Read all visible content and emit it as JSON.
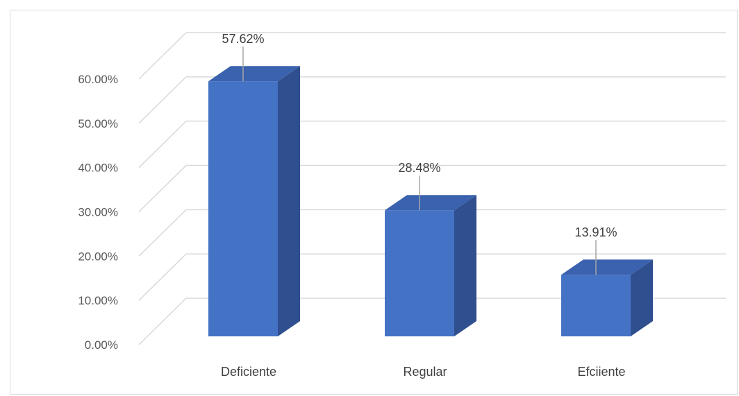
{
  "chart_data": {
    "type": "bar",
    "style": "3d-column",
    "title": "",
    "xlabel": "",
    "ylabel": "",
    "categories": [
      "Deficiente",
      "Regular",
      "Efciiente"
    ],
    "values": [
      57.62,
      28.48,
      13.91
    ],
    "data_labels": [
      "57.62%",
      "28.48%",
      "13.91%"
    ],
    "ylim": [
      0,
      60
    ],
    "y_ticks": [
      0,
      10,
      20,
      30,
      40,
      50,
      60
    ],
    "y_tick_labels": [
      "0.00%",
      "10.00%",
      "20.00%",
      "30.00%",
      "40.00%",
      "50.00%",
      "60.00%"
    ],
    "grid": true,
    "legend": "none",
    "colors": {
      "front": "#4472C4",
      "side": "#2F4F8F",
      "top": "#3A62AE",
      "grid": "#d9d9d9",
      "leader": "#a6a6a6"
    }
  }
}
